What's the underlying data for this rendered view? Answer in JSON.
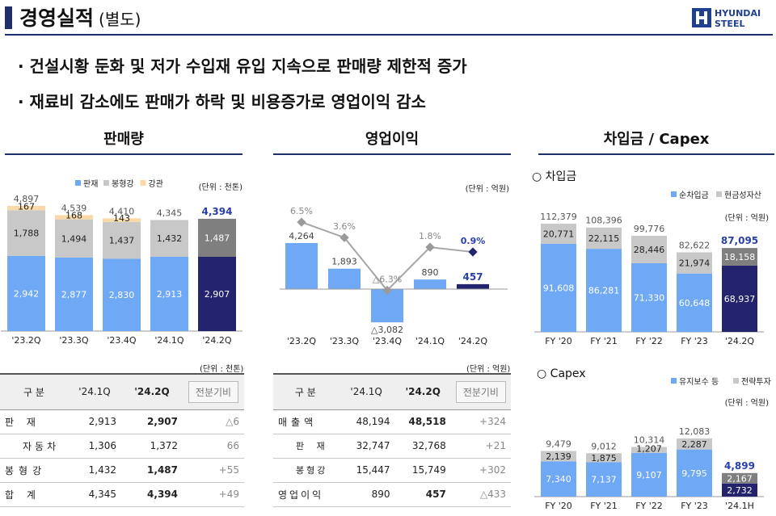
{
  "header": {
    "title": "경영실적",
    "subtitle": "(별도)",
    "logo_line1": "HYUNDAI",
    "logo_line2": "STEEL"
  },
  "bullets": [
    "· 건설시황 둔화 및 저가 수입재 유입 지속으로 판매량 제한적 증가",
    "· 재료비 감소에도 판매가 하락 및 비용증가로 영업이익 감소"
  ],
  "sections": {
    "sales": "판매량",
    "op": "영업이익",
    "debt": "차입금 / Capex"
  },
  "colors": {
    "blue": "#6fa8f5",
    "grey": "#c8c8c8",
    "orange": "#f9d9a8",
    "navy": "#23236e",
    "navy_grey": "#7f7f7f",
    "line": "#a6a6a6"
  },
  "chart_data": [
    {
      "id": "sales",
      "type": "bar",
      "stacked": true,
      "unit": "(단위 : 천톤)",
      "categories": [
        "'23.2Q",
        "'23.3Q",
        "'23.4Q",
        "'24.1Q",
        "'24.2Q"
      ],
      "series": [
        {
          "name": "판재",
          "values": [
            2942,
            2877,
            2830,
            2913,
            2907
          ]
        },
        {
          "name": "봉형강",
          "values": [
            1788,
            1494,
            1437,
            1432,
            1487
          ]
        },
        {
          "name": "강관",
          "values": [
            167,
            168,
            143,
            0,
            0
          ]
        }
      ],
      "totals": [
        "4,897",
        "4,539",
        "4,410",
        "4,345",
        "4,394"
      ],
      "labels": [
        [
          "2,942",
          "2,877",
          "2,830",
          "2,913",
          "2,907"
        ],
        [
          "1,788",
          "1,494",
          "1,437",
          "1,432",
          "1,487"
        ],
        [
          "167",
          "168",
          "143",
          "",
          ""
        ]
      ]
    },
    {
      "id": "op",
      "type": "bar+line",
      "unit": "(단위 : 억원)",
      "categories": [
        "'23.2Q",
        "'23.3Q",
        "'23.4Q",
        "'24.1Q",
        "'24.2Q"
      ],
      "bar_values": [
        4264,
        1893,
        -3082,
        890,
        457
      ],
      "bar_labels": [
        "4,264",
        "1,893",
        "△3,082",
        "890",
        "457"
      ],
      "margin_values": [
        6.5,
        3.6,
        -6.3,
        1.8,
        0.9
      ],
      "margin_labels": [
        "6.5%",
        "3.6%",
        "△6.3%",
        "1.8%",
        "0.9%"
      ]
    },
    {
      "id": "debt",
      "type": "bar",
      "stacked": true,
      "title": "○ 차입금",
      "unit": "(단위 : 억원)",
      "categories": [
        "FY '20",
        "FY '21",
        "FY '22",
        "FY '23",
        "'24.2Q"
      ],
      "series": [
        {
          "name": "순차입금",
          "values": [
            91608,
            86281,
            71330,
            60648,
            68937
          ]
        },
        {
          "name": "현금성자산",
          "values": [
            20771,
            22115,
            28446,
            21974,
            18158
          ]
        }
      ],
      "totals": [
        "112,379",
        "108,396",
        "99,776",
        "82,622",
        "87,095"
      ],
      "labels": [
        [
          "91,608",
          "86,281",
          "71,330",
          "60,648",
          "68,937"
        ],
        [
          "20,771",
          "22,115",
          "28,446",
          "21,974",
          "18,158"
        ]
      ]
    },
    {
      "id": "capex",
      "type": "bar",
      "stacked": true,
      "title": "○ Capex",
      "unit": "(단위 : 억원)",
      "categories": [
        "FY '20",
        "FY '21",
        "FY '22",
        "FY '23",
        "'24.1H"
      ],
      "series": [
        {
          "name": "유지보수 등",
          "values": [
            7340,
            7137,
            9107,
            9795,
            2732
          ]
        },
        {
          "name": "전략투자",
          "values": [
            2139,
            1875,
            1207,
            2287,
            2167
          ]
        }
      ],
      "totals": [
        "9,479",
        "9,012",
        "10,314",
        "12,083",
        "4,899"
      ],
      "labels": [
        [
          "7,340",
          "7,137",
          "9,107",
          "9,795",
          "2,732"
        ],
        [
          "2,139",
          "1,875",
          "1,207",
          "2,287",
          "2,167"
        ]
      ]
    }
  ],
  "tables": {
    "sales": {
      "unit": "(단위 : 천톤)",
      "headers": [
        "구 분",
        "'24.1Q",
        "'24.2Q",
        "전분기비"
      ],
      "rows": [
        [
          "판 재",
          "2,913",
          "2,907",
          "△6"
        ],
        [
          "자동차",
          "1,306",
          "1,372",
          "66"
        ],
        [
          "봉형강",
          "1,432",
          "1,487",
          "+55"
        ],
        [
          "합 계",
          "4,345",
          "4,394",
          "+49"
        ]
      ]
    },
    "op": {
      "unit": "(단위 : 억원)",
      "headers": [
        "구 분",
        "'24.1Q",
        "'24.2Q",
        "전분기비"
      ],
      "rows": [
        [
          "매출액",
          "48,194",
          "48,518",
          "+324"
        ],
        [
          "판 재",
          "32,747",
          "32,768",
          "+21"
        ],
        [
          "봉형강",
          "15,447",
          "15,749",
          "+302"
        ],
        [
          "영업이익",
          "890",
          "457",
          "△433"
        ]
      ]
    }
  }
}
